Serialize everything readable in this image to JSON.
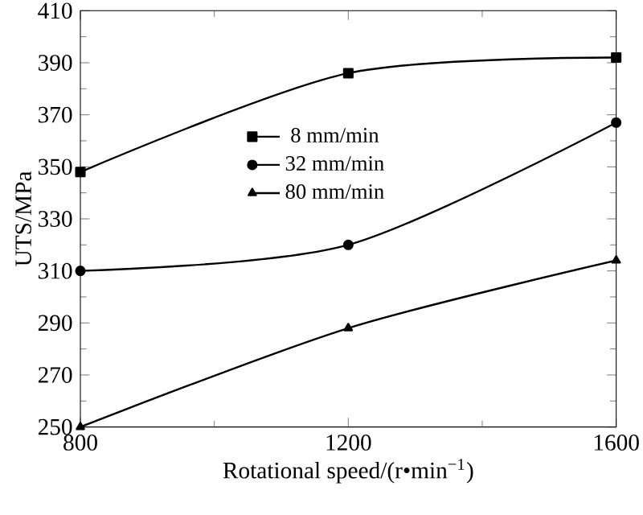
{
  "chart_data": {
    "type": "line",
    "xlabel": "Rotational speed/(r•min$^{−1}$)",
    "ylabel": "UTS/MPa",
    "x": [
      800,
      1200,
      1600
    ],
    "xlim": [
      800,
      1600
    ],
    "xticks": [
      800,
      1200,
      1600
    ],
    "ylim": [
      250,
      410
    ],
    "yticks": [
      250,
      270,
      290,
      310,
      330,
      350,
      370,
      390,
      410
    ],
    "grid": false,
    "legend": "top",
    "line_style": "solid",
    "series": [
      {
        "name": "8 mm/min",
        "color": "#000000",
        "marker": "square",
        "values": [
          348,
          386,
          392
        ]
      },
      {
        "name": "32 mm/min",
        "color": "#000000",
        "marker": "circle",
        "values": [
          310,
          320,
          367
        ]
      },
      {
        "name": "80 mm/min",
        "color": "#000000",
        "marker": "triangle",
        "values": [
          250,
          288,
          314
        ]
      }
    ]
  }
}
